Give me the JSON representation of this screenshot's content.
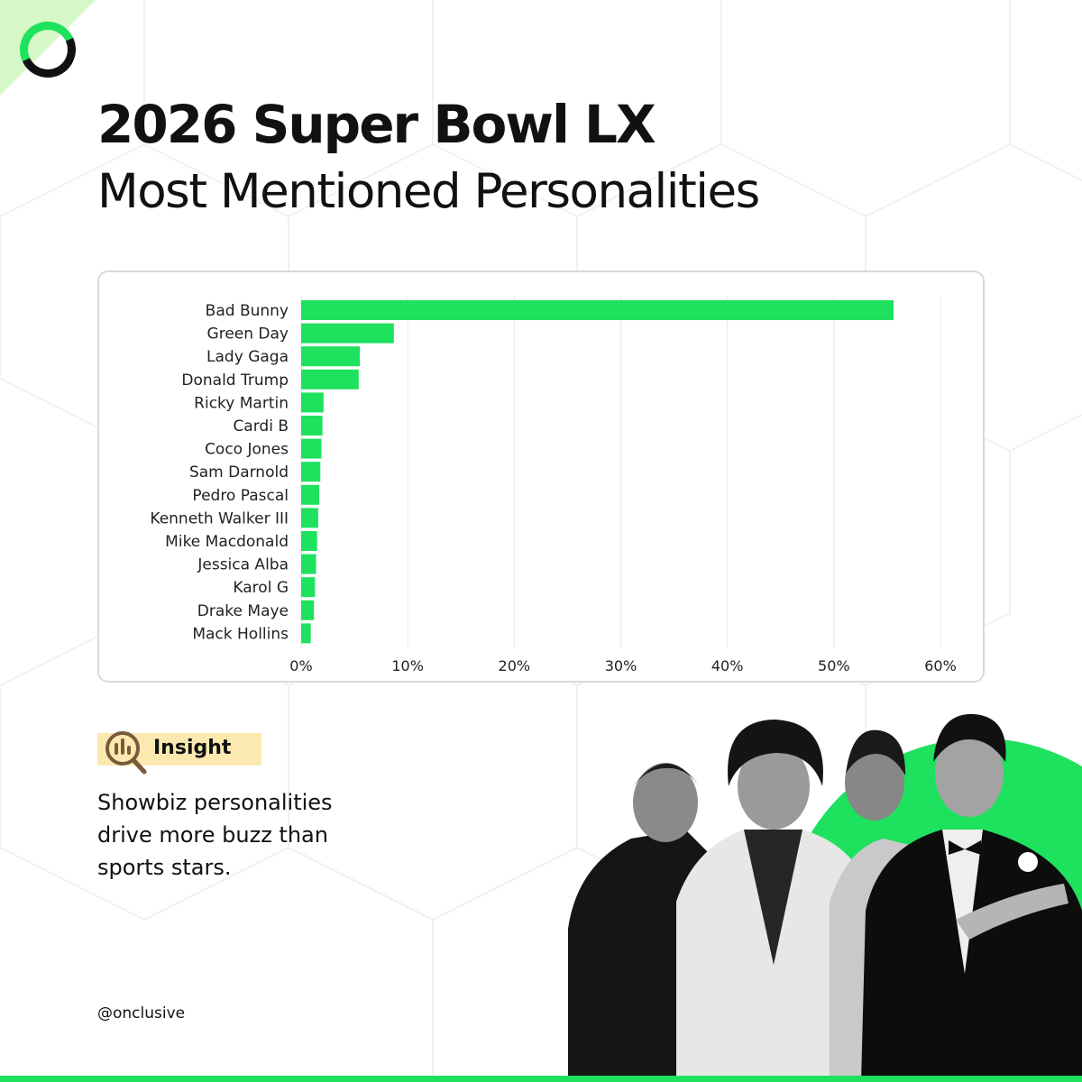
{
  "colors": {
    "accent": "#1ee15e",
    "accent_light": "#d6f7c6",
    "text": "#111111",
    "insight_badge": "#fbe9b0",
    "gridline": "#e8e8e8",
    "card_border": "#d9d9d9"
  },
  "logo_icon": "onclusive-ring-logo-icon",
  "title": {
    "line1": "2026 Super Bowl LX",
    "line2": "Most Mentioned Personalities"
  },
  "chart_data": {
    "type": "bar",
    "orientation": "horizontal",
    "categories": [
      "Bad Bunny",
      "Green Day",
      "Lady Gaga",
      "Donald Trump",
      "Ricky Martin",
      "Cardi B",
      "Coco Jones",
      "Sam Darnold",
      "Pedro Pascal",
      "Kenneth Walker III",
      "Mike Macdonald",
      "Jessica Alba",
      "Karol G",
      "Drake Maye",
      "Mack Hollins"
    ],
    "values": [
      55.6,
      8.7,
      5.5,
      5.4,
      2.1,
      2.0,
      1.9,
      1.8,
      1.7,
      1.6,
      1.5,
      1.4,
      1.3,
      1.2,
      0.9
    ],
    "xlim": [
      0,
      60
    ],
    "x_ticks": [
      "0%",
      "10%",
      "20%",
      "30%",
      "40%",
      "50%",
      "60%"
    ],
    "grid": "vertical",
    "bar_color": "#1ee15e",
    "xlabel": "",
    "ylabel": ""
  },
  "insight": {
    "icon": "bar-chart-magnifier-icon",
    "label": "Insight",
    "text": "Showbiz personalities drive more buzz than sports stars."
  },
  "footer": {
    "handle": "@onclusive"
  }
}
